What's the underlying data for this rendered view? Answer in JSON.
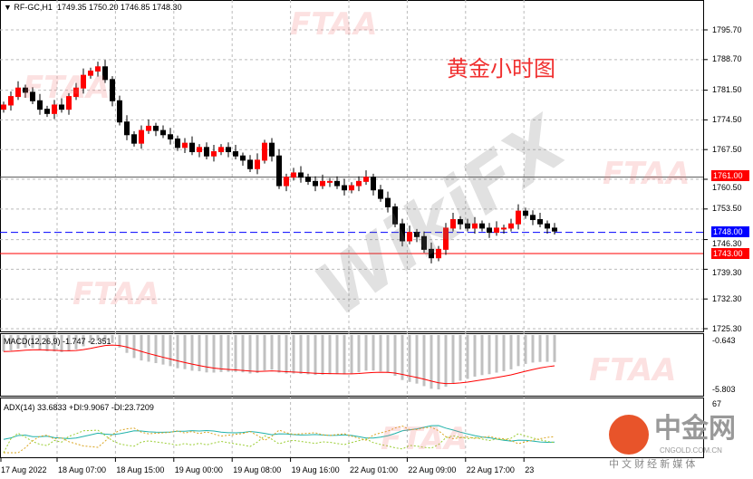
{
  "header": {
    "symbol": "RF-GC,H1",
    "ohlc": "1749.35 1750.20 1746.85 1748.30"
  },
  "annotation": "黄金小时图",
  "watermarks": {
    "ftaa": "FTAA",
    "wikifx": "WikiFX",
    "logo": "中金网",
    "logo_sub": "CNGOLD.COM.CN",
    "logo_tag": "中 文 财 经 新 媒 体"
  },
  "price_axis": [
    "1795.70",
    "1788.70",
    "1781.50",
    "1774.50",
    "1767.50",
    "1760.50",
    "1753.50",
    "1746.30",
    "1739.30",
    "1732.30",
    "1725.30"
  ],
  "levels": [
    {
      "label": "1761.00",
      "value": 1761.0,
      "color": "#ff0000"
    },
    {
      "label": "1748.00",
      "value": 1748.0,
      "color": "#0000ff"
    },
    {
      "label": "1743.00",
      "value": 1743.0,
      "color": "#ff0000"
    }
  ],
  "macd": {
    "label": "MACD(12,26,9) -1.747 -2.351",
    "axis": [
      "-0.643",
      "-5.803"
    ]
  },
  "adx": {
    "label": "ADX(14) 33.6833 +DI:9.9067 -DI:23.7209",
    "axis": [
      "67"
    ]
  },
  "time_axis": [
    "17 Aug 2022",
    "18 Aug 07:00",
    "18 Aug 15:00",
    "19 Aug 00:00",
    "19 Aug 08:00",
    "19 Aug 16:00",
    "22 Aug 01:00",
    "22 Aug 09:00",
    "22 Aug 17:00",
    "23"
  ],
  "colors": {
    "bull": "#ff0000",
    "bear": "#000000",
    "macd_hist": "#c0c0c0",
    "signal": "#ff0000",
    "adx": "#20b2aa",
    "plus_di": "#9acd32",
    "minus_di": "#daa520"
  },
  "chart_data": {
    "type": "candlestick",
    "timeframe": "H1",
    "ylim": [
      1725.3,
      1799
    ],
    "closes": [
      1778,
      1780,
      1782,
      1781,
      1779,
      1777,
      1776,
      1778,
      1777,
      1780,
      1782,
      1785,
      1786,
      1787,
      1784,
      1779,
      1774,
      1771,
      1769,
      1772,
      1773,
      1772,
      1771,
      1770,
      1768,
      1769,
      1767,
      1768,
      1766,
      1767,
      1768,
      1767,
      1766,
      1765,
      1763,
      1765,
      1769,
      1766,
      1759,
      1761,
      1762,
      1761,
      1760,
      1759,
      1760,
      1760,
      1759,
      1758,
      1759,
      1760,
      1761,
      1758,
      1756,
      1754,
      1750,
      1746,
      1748,
      1747,
      1744,
      1742,
      1744,
      1749,
      1751,
      1750,
      1749,
      1750,
      1749,
      1748,
      1749,
      1749,
      1750,
      1753,
      1752,
      1751,
      1750,
      1749,
      1748.3
    ]
  }
}
